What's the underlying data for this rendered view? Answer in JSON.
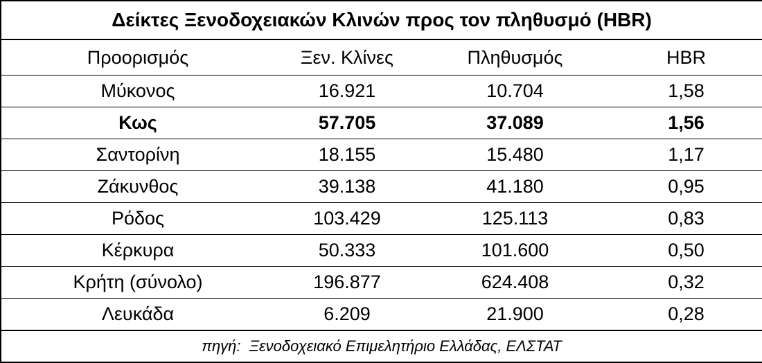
{
  "title": "Δείκτες Ξενοδοχειακών Κλινών προς τον πληθυσμό (HBR)",
  "table": {
    "header": [
      "Προορισμός",
      "Ξεν. Κλίνες",
      "Πληθυσμός",
      "HBR"
    ],
    "rows": [
      [
        "Μύκονος",
        "16.921",
        "10.704",
        "1,58"
      ],
      [
        "Κως",
        "57.705",
        "37.089",
        "1,56"
      ],
      [
        "Σαντορίνη",
        "18.155",
        "15.480",
        "1,17"
      ],
      [
        "Ζάκυνθος",
        "39.138",
        "41.180",
        "0,95"
      ],
      [
        "Ρόδος",
        "103.429",
        "125.113",
        "0,83"
      ],
      [
        "Κέρκυρα",
        "50.333",
        "101.600",
        "0,50"
      ],
      [
        "Κρήτη (σύνολο)",
        "196.877",
        "624.408",
        "0,32"
      ],
      [
        "Λευκάδα",
        "6.209",
        "21.900",
        "0,28"
      ]
    ]
  },
  "source": "πηγή:  Ξενοδοχειακό Επιμελητήριο Ελλάδας, ΕΛΣΤΑΤ"
}
